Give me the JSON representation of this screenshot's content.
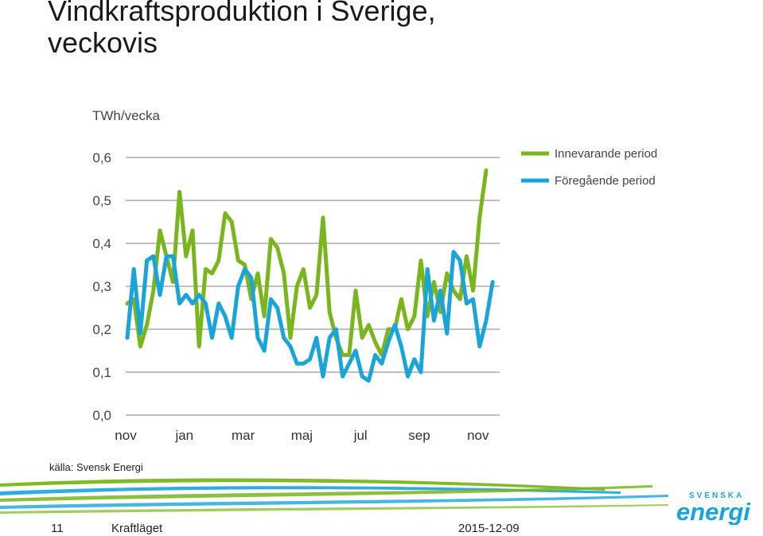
{
  "slide": {
    "title_line1": "Vindkraftsproduktion i Sverige,",
    "title_line2": "veckovis",
    "source": "källa: Svensk Energi",
    "page_number": "11",
    "section": "Kraftläget",
    "date": "2015-12-09"
  },
  "brand": {
    "line1": "SVENSKA",
    "line2": "energi",
    "colors": {
      "blue": "#1aa4d8",
      "green": "#7ab51d"
    }
  },
  "chart_data": {
    "type": "line",
    "title": "Vindkraftsproduktion i Sverige, veckovis",
    "ylabel": "TWh/vecka",
    "xlabel": "",
    "ylim": [
      0,
      0.6
    ],
    "y_ticks": [
      0.0,
      0.1,
      0.2,
      0.3,
      0.4,
      0.5,
      0.6
    ],
    "y_tick_labels": [
      "0,0",
      "0,1",
      "0,2",
      "0,3",
      "0,4",
      "0,5",
      "0,6"
    ],
    "x_range_weeks": [
      0,
      58
    ],
    "x_ticks": [
      {
        "label": "nov",
        "week": 0
      },
      {
        "label": "jan",
        "week": 9
      },
      {
        "label": "mar",
        "week": 18
      },
      {
        "label": "maj",
        "week": 27
      },
      {
        "label": "jul",
        "week": 36
      },
      {
        "label": "sep",
        "week": 45
      },
      {
        "label": "nov",
        "week": 54
      }
    ],
    "legend_position": "top-right",
    "series": [
      {
        "name": "Innevarande period",
        "color": "#7ab51d",
        "values": [
          0.26,
          0.27,
          0.16,
          0.21,
          0.29,
          0.43,
          0.37,
          0.31,
          0.52,
          0.37,
          0.43,
          0.16,
          0.34,
          0.33,
          0.36,
          0.47,
          0.45,
          0.36,
          0.35,
          0.27,
          0.33,
          0.23,
          0.41,
          0.39,
          0.33,
          0.18,
          0.3,
          0.34,
          0.25,
          0.28,
          0.46,
          0.24,
          0.18,
          0.14,
          0.14,
          0.29,
          0.18,
          0.21,
          0.17,
          0.14,
          0.2,
          0.2,
          0.27,
          0.2,
          0.23,
          0.36,
          0.23,
          0.31,
          0.24,
          0.33,
          0.29,
          0.27,
          0.37,
          0.29,
          0.46,
          0.57
        ]
      },
      {
        "name": "Föregående period",
        "color": "#1aa4d8",
        "values": [
          0.18,
          0.34,
          0.19,
          0.36,
          0.37,
          0.28,
          0.37,
          0.37,
          0.26,
          0.28,
          0.26,
          0.28,
          0.26,
          0.18,
          0.26,
          0.23,
          0.18,
          0.3,
          0.34,
          0.32,
          0.18,
          0.15,
          0.27,
          0.25,
          0.18,
          0.16,
          0.12,
          0.12,
          0.13,
          0.18,
          0.09,
          0.18,
          0.2,
          0.09,
          0.12,
          0.15,
          0.09,
          0.08,
          0.14,
          0.12,
          0.17,
          0.21,
          0.16,
          0.09,
          0.13,
          0.1,
          0.34,
          0.22,
          0.29,
          0.19,
          0.38,
          0.36,
          0.26,
          0.27,
          0.16,
          0.22,
          0.31
        ]
      }
    ]
  }
}
